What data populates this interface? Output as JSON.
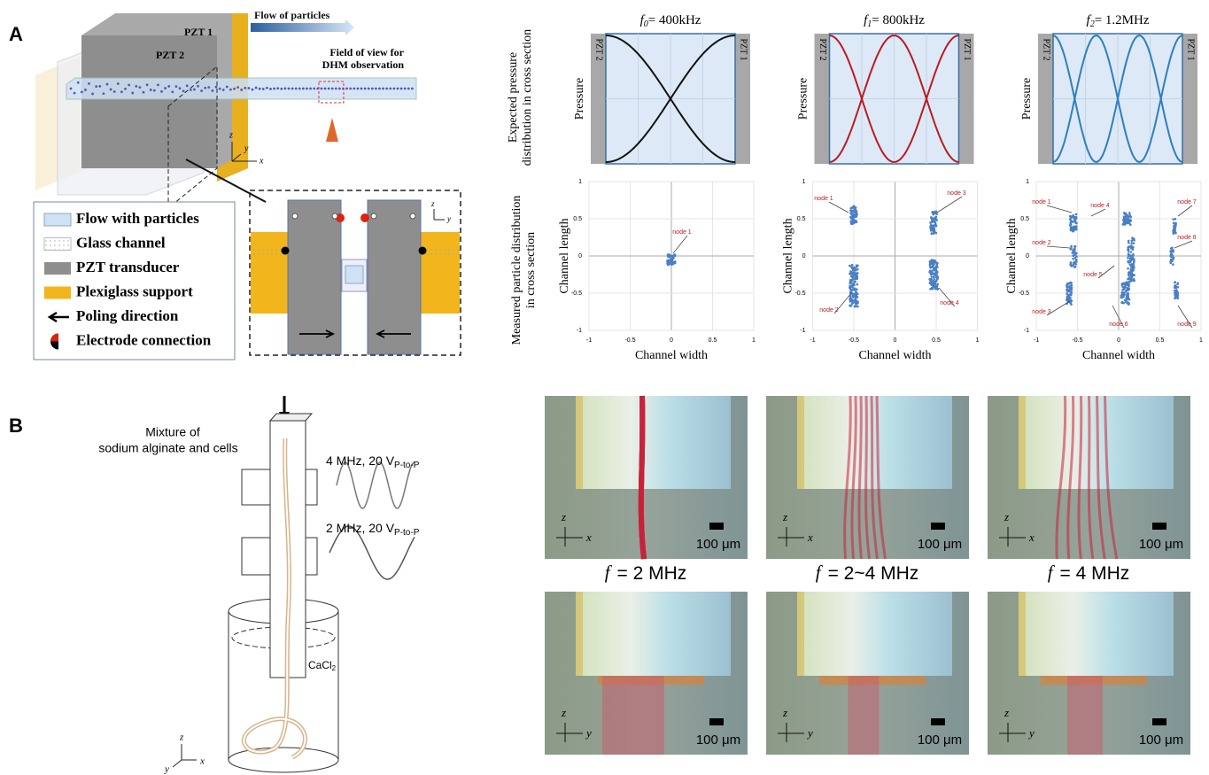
{
  "panel_a": {
    "label": "A",
    "flow_label": "Flow of particles",
    "pzt1": "PZT 1",
    "pzt2": "PZT 2",
    "fov_lines": [
      "Field of view for",
      "DHM observation"
    ],
    "axes": [
      "z",
      "y",
      "x"
    ],
    "inset_axes": [
      "z",
      "y"
    ],
    "legend": [
      "Flow with particles",
      "Glass channel",
      "PZT transducer",
      "Plexiglass support",
      "Poling direction",
      "Electrode connection"
    ],
    "row_labels": [
      [
        "Expected pressure",
        "distribution in cross section"
      ],
      [
        "Measured particle distribution",
        "in cross section"
      ]
    ],
    "columns": [
      {
        "symbol": "f",
        "sub": "0",
        "text": "= 400kHz",
        "pzt_left": "PZT 2",
        "pzt_right": "PZT 1",
        "pressure_label": "Pressure",
        "x_label": "Channel width",
        "y_label": "Channel length",
        "xticks": [
          -1,
          -0.5,
          0,
          0.5,
          1
        ],
        "yticks": [
          1,
          0.5,
          0,
          -0.5,
          -1
        ],
        "nodes": [
          "node 1"
        ]
      },
      {
        "symbol": "f",
        "sub": "1",
        "text": "= 800kHz",
        "pzt_left": "PZT 2",
        "pzt_right": "PZT 1",
        "pressure_label": "Pressure",
        "x_label": "Channel width",
        "y_label": "Channel length",
        "xticks": [
          -1,
          -0.5,
          0,
          0.5,
          1
        ],
        "yticks": [
          1,
          0.5,
          0,
          -0.5,
          -1
        ],
        "nodes": [
          "node 1",
          "node 3",
          "node 2",
          "node 4"
        ]
      },
      {
        "symbol": "f",
        "sub": "2",
        "text": "= 1.2MHz",
        "pzt_left": "PZT 2",
        "pzt_right": "PZT 1",
        "pressure_label": "Pressure",
        "x_label": "Channel width",
        "y_label": "Channel length",
        "xticks": [
          -1,
          -0.5,
          0,
          0.5,
          1
        ],
        "yticks": [
          1,
          0.5,
          0,
          -0.5,
          -1
        ],
        "nodes": [
          "node 1",
          "node 4",
          "node 7",
          "node 2",
          "node 8",
          "node 5",
          "node 3",
          "node 6",
          "node 9"
        ]
      }
    ]
  },
  "panel_b": {
    "label": "B",
    "mixture_lines": [
      "Mixture of",
      "sodium alginate and cells"
    ],
    "signal_high": {
      "text": "4 MHz, 20 V",
      "sub": "P-to-P"
    },
    "signal_low": {
      "text": "2 MHz, 20 V",
      "sub": "P-to-P"
    },
    "bath": {
      "text": "CaCl",
      "sub": "2"
    },
    "axes": [
      "z",
      "y",
      "x"
    ],
    "conditions": [
      {
        "symbol": "f",
        "text": "= 2 MHz"
      },
      {
        "symbol": "f",
        "text": "= 2~4 MHz"
      },
      {
        "symbol": "f",
        "text": "= 4 MHz"
      }
    ],
    "photos": [
      {
        "scale": "100 μm",
        "axes": [
          "z",
          "x"
        ]
      },
      {
        "scale": "100 μm",
        "axes": [
          "z",
          "x"
        ]
      },
      {
        "scale": "100 μm",
        "axes": [
          "z",
          "x"
        ]
      },
      {
        "scale": "100 μm",
        "axes": [
          "z",
          "y"
        ]
      },
      {
        "scale": "100 μm",
        "axes": [
          "z",
          "y"
        ]
      },
      {
        "scale": "100 μm",
        "axes": [
          "z",
          "y"
        ]
      }
    ]
  }
}
